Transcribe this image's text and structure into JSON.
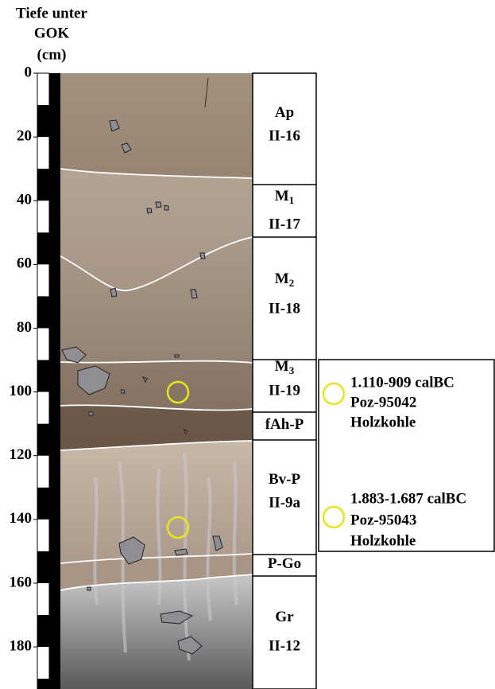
{
  "axis": {
    "title": [
      "Tiefe unter",
      "GOK",
      "(cm)"
    ],
    "ticks": [
      0,
      20,
      40,
      60,
      80,
      100,
      120,
      140,
      160,
      180
    ]
  },
  "horizons": [
    {
      "name": "Ap",
      "code": "II-16"
    },
    {
      "name": "M",
      "sub": "1",
      "code": "II-17"
    },
    {
      "name": "M",
      "sub": "2",
      "code": "II-18"
    },
    {
      "name": "M",
      "sub": "3",
      "code": "II-19"
    },
    {
      "name": "fAh-P"
    },
    {
      "name": "Bv-P",
      "code": "II-9a"
    },
    {
      "name": "P-Go"
    },
    {
      "name": "Gr",
      "code": "II-12"
    }
  ],
  "samples": [
    {
      "date": "1.110-909 calBC",
      "lab": "Poz-95042",
      "material": "Holzkohle"
    },
    {
      "date": "1.883-1.687 calBC",
      "lab": "Poz-95043",
      "material": "Holzkohle"
    }
  ]
}
